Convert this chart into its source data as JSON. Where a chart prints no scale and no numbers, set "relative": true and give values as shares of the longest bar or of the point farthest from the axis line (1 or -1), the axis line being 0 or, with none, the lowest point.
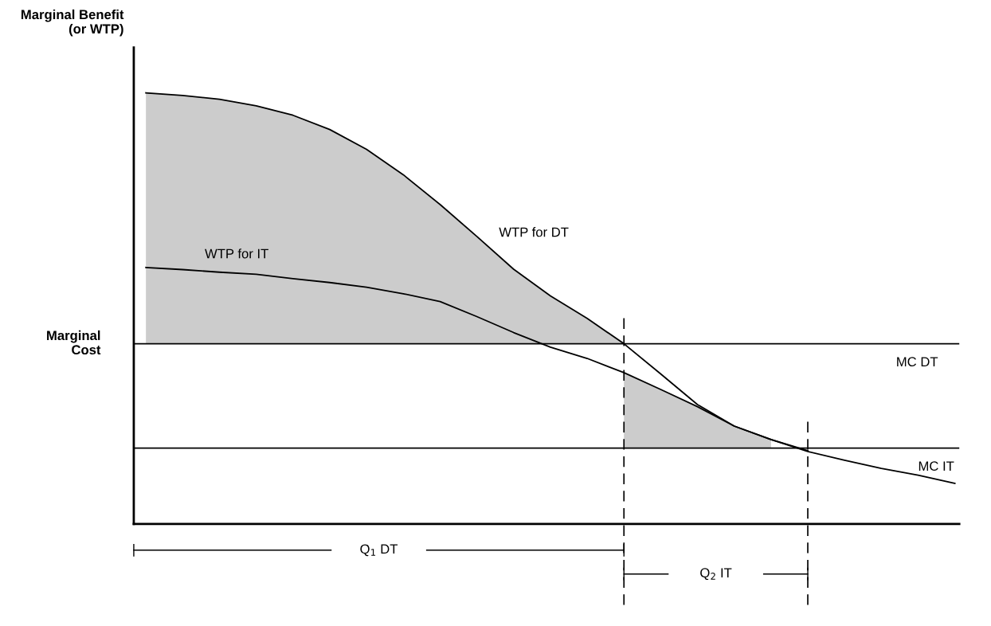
{
  "chart_data": {
    "type": "line",
    "relative": true,
    "ylabel": "Marginal Benefit\n(or WTP)",
    "categories": [
      null,
      null,
      null,
      null,
      null,
      null,
      null,
      null,
      null,
      null,
      null,
      null,
      null,
      null,
      null,
      null,
      null,
      null,
      null,
      null,
      null,
      null,
      null
    ],
    "series": [
      {
        "name": "WTP for DT",
        "color": "#000000",
        "values": [
          1.0,
          0.994,
          0.985,
          0.97,
          0.948,
          0.915,
          0.869,
          0.81,
          0.741,
          0.667,
          0.591,
          0.529,
          0.477,
          0.418,
          0.348,
          0.277,
          0.227,
          0.196,
          0.17,
          null,
          null,
          null,
          null
        ],
        "lower": [
          0.418,
          0.418,
          0.418,
          0.418,
          0.418,
          0.418,
          0.418,
          0.418,
          0.418,
          0.418,
          0.418,
          0.418,
          0.418,
          0.418,
          null,
          null,
          null,
          null,
          null,
          null,
          null,
          null,
          null
        ],
        "upper": [
          1.0,
          0.994,
          0.985,
          0.97,
          0.948,
          0.915,
          0.869,
          0.81,
          0.741,
          0.667,
          0.591,
          0.529,
          0.477,
          0.418,
          null,
          null,
          null,
          null,
          null,
          null,
          null,
          null,
          null
        ]
      },
      {
        "name": "WTP for IT",
        "color": "#000000",
        "values": [
          0.595,
          0.59,
          0.584,
          0.579,
          0.569,
          0.56,
          0.549,
          0.534,
          0.516,
          0.481,
          0.444,
          0.41,
          0.384,
          0.351,
          0.312,
          0.272,
          0.227,
          0.196,
          0.168,
          0.148,
          0.129,
          0.113,
          0.094
        ],
        "lower": [
          null,
          null,
          null,
          null,
          null,
          null,
          null,
          null,
          null,
          null,
          null,
          null,
          null,
          0.176,
          0.176,
          0.176,
          0.176,
          0.176,
          null,
          null,
          null,
          null,
          null
        ],
        "upper": [
          null,
          null,
          null,
          null,
          null,
          null,
          null,
          null,
          null,
          null,
          null,
          null,
          null,
          0.351,
          0.312,
          0.272,
          0.227,
          0.196,
          null,
          null,
          null,
          null,
          null
        ]
      }
    ],
    "ref_lines": [
      {
        "axis": "y",
        "value": 0.418,
        "label": "MC DT",
        "color": "#000000"
      },
      {
        "axis": "y",
        "value": 0.176,
        "label": "MC IT",
        "color": "#000000"
      }
    ],
    "annotations": [
      "Marginal\nCost",
      "Q$_{1}$ DT",
      "Q$_{2}$ IT"
    ],
    "marker": "none",
    "line_style": "solid"
  }
}
